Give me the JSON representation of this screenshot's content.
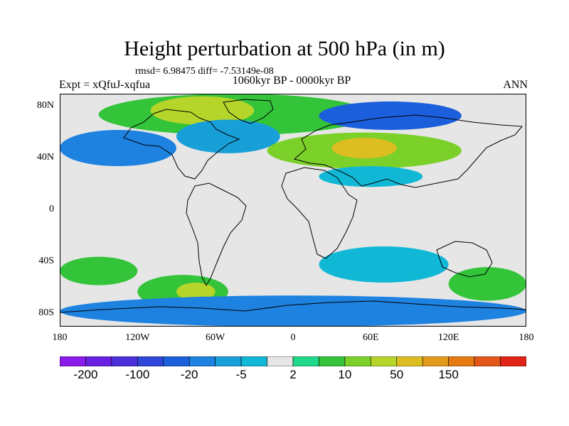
{
  "title": "Height perturbation at 500 hPa (in m)",
  "stats": "rmsd= 6.98475 diff= -7.53149e-08",
  "expt": "Expt = xQfuJ-xqfua",
  "period": "1060kyr BP - 0000kyr BP",
  "season": "ANN",
  "lat_labels": [
    "80N",
    "40N",
    "0",
    "40S",
    "80S"
  ],
  "lat_values": [
    80,
    40,
    0,
    -40,
    -80
  ],
  "lon_labels": [
    "180",
    "120W",
    "60W",
    "0",
    "60E",
    "120E",
    "180"
  ],
  "lon_values": [
    -180,
    -120,
    -60,
    0,
    60,
    120,
    180
  ],
  "colorbar": {
    "colors": [
      "#8a1be8",
      "#6a20e0",
      "#4b2fd8",
      "#2f46d8",
      "#1c5fdc",
      "#1d82e0",
      "#189fd8",
      "#11b8d6",
      "#e6e6e6",
      "#1fd98a",
      "#34c43a",
      "#7bd02a",
      "#b6d52a",
      "#dcbd22",
      "#e39a1c",
      "#e57a12",
      "#e4571a",
      "#e02418"
    ],
    "labels": [
      "-200",
      "-100",
      "-20",
      "-5",
      "2",
      "10",
      "50",
      "150"
    ],
    "label_boundaries": [
      1,
      3,
      5,
      7,
      9,
      11,
      13,
      15
    ]
  },
  "map": {
    "background_color": "#e6e6e6",
    "regions": [
      {
        "name": "arctic-positive",
        "color": "#34c43a",
        "lon": [
          -150,
          60
        ],
        "lat": [
          58,
          90
        ]
      },
      {
        "name": "greenland-max",
        "color": "#b6d52a",
        "lon": [
          -110,
          -30
        ],
        "lat": [
          66,
          88
        ]
      },
      {
        "name": "siberia-negative",
        "color": "#1c5fdc",
        "lon": [
          20,
          130
        ],
        "lat": [
          62,
          84
        ]
      },
      {
        "name": "north-pacific-negative",
        "color": "#1d82e0",
        "lon": [
          -180,
          -90
        ],
        "lat": [
          34,
          62
        ]
      },
      {
        "name": "north-atlantic-negative",
        "color": "#189fd8",
        "lon": [
          -90,
          -10
        ],
        "lat": [
          44,
          70
        ]
      },
      {
        "name": "eurasia-positive",
        "color": "#7bd02a",
        "lon": [
          -20,
          130
        ],
        "lat": [
          32,
          60
        ]
      },
      {
        "name": "eurasia-max",
        "color": "#dcbd22",
        "lon": [
          30,
          80
        ],
        "lat": [
          40,
          56
        ]
      },
      {
        "name": "south-asia-negative",
        "color": "#11b8d6",
        "lon": [
          20,
          100
        ],
        "lat": [
          18,
          34
        ]
      },
      {
        "name": "south-pacific-positive",
        "color": "#34c43a",
        "lon": [
          -120,
          -50
        ],
        "lat": [
          -76,
          -50
        ]
      },
      {
        "name": "south-pacific-max",
        "color": "#b6d52a",
        "lon": [
          -90,
          -60
        ],
        "lat": [
          -70,
          -56
        ]
      },
      {
        "name": "southern-ocean-negative",
        "color": "#1d82e0",
        "lon": [
          -180,
          180
        ],
        "lat": [
          -90,
          -66
        ]
      },
      {
        "name": "south-indian-negative",
        "color": "#11b8d6",
        "lon": [
          20,
          120
        ],
        "lat": [
          -56,
          -28
        ]
      },
      {
        "name": "east-pacific-positive",
        "color": "#34c43a",
        "lon": [
          -180,
          -120
        ],
        "lat": [
          -58,
          -36
        ]
      },
      {
        "name": "tasman-positive",
        "color": "#34c43a",
        "lon": [
          120,
          180
        ],
        "lat": [
          -70,
          -44
        ]
      }
    ]
  }
}
